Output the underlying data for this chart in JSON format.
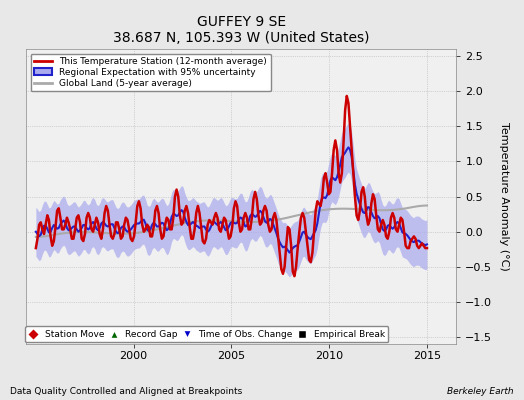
{
  "title": "GUFFEY 9 SE",
  "subtitle": "38.687 N, 105.393 W (United States)",
  "xlabel_left": "Data Quality Controlled and Aligned at Breakpoints",
  "xlabel_right": "Berkeley Earth",
  "ylabel": "Temperature Anomaly (°C)",
  "xlim": [
    1994.5,
    2016.5
  ],
  "ylim": [
    -1.6,
    2.6
  ],
  "yticks": [
    -1.5,
    -1.0,
    -0.5,
    0.0,
    0.5,
    1.0,
    1.5,
    2.0,
    2.5
  ],
  "xticks": [
    2000,
    2005,
    2010,
    2015
  ],
  "background_color": "#e8e8e8",
  "plot_bg_color": "#f0f0f0",
  "station_color": "#cc0000",
  "regional_color": "#2222cc",
  "regional_fill_color": "#aaaaee",
  "global_color": "#aaaaaa",
  "legend_items": [
    {
      "label": "This Temperature Station (12-month average)",
      "color": "#cc0000",
      "lw": 2
    },
    {
      "label": "Regional Expectation with 95% uncertainty",
      "color": "#2222cc",
      "lw": 2
    },
    {
      "label": "Global Land (5-year average)",
      "color": "#aaaaaa",
      "lw": 2
    }
  ],
  "bottom_legend": [
    {
      "label": "Station Move",
      "color": "#cc0000",
      "marker": "D"
    },
    {
      "label": "Record Gap",
      "color": "#006600",
      "marker": "^"
    },
    {
      "label": "Time of Obs. Change",
      "color": "#0000cc",
      "marker": "v"
    },
    {
      "label": "Empirical Break",
      "color": "#000000",
      "marker": "s"
    }
  ]
}
